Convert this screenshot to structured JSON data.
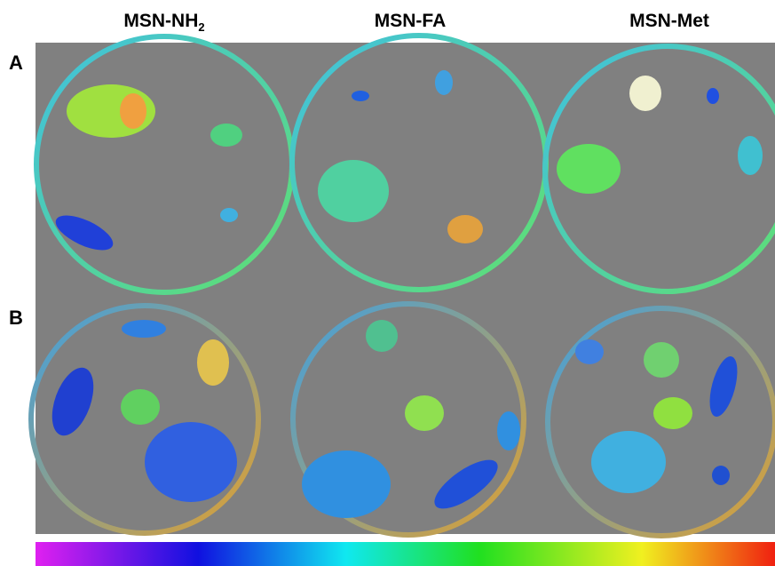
{
  "columns": [
    {
      "text": "MSN-NH",
      "sub": "2"
    },
    {
      "text": "MSN-FA"
    },
    {
      "text": "MSN-Met"
    }
  ],
  "rows": [
    {
      "label": "A"
    },
    {
      "label": "B"
    }
  ]
}
